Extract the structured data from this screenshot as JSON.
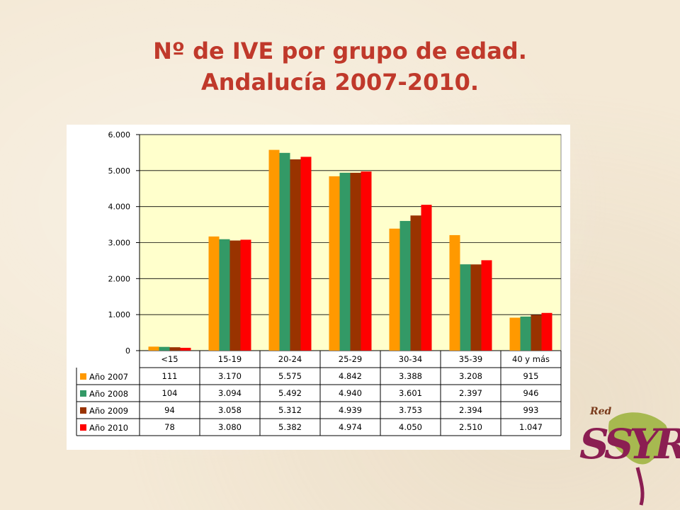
{
  "slide": {
    "title_line1": "Nº de IVE por grupo de edad.",
    "title_line2": "Andalucía 2007-2010."
  },
  "colors": {
    "title": "#c0392b",
    "plot_background": "#ffffcc",
    "series": [
      "#ff9900",
      "#339966",
      "#993300",
      "#ff0000"
    ]
  },
  "logo": {
    "word": "Red",
    "letters": "SSYR"
  },
  "chart_data": {
    "type": "bar",
    "title": "",
    "xlabel": "",
    "ylabel": "",
    "ylim": [
      0,
      6000
    ],
    "yticks": [
      0,
      1000,
      2000,
      3000,
      4000,
      5000,
      6000
    ],
    "ytick_labels": [
      "0",
      "1.000",
      "2.000",
      "3.000",
      "4.000",
      "5.000",
      "6.000"
    ],
    "grid": true,
    "legend": "data table below chart",
    "categories": [
      "<15",
      "15-19",
      "20-24",
      "25-29",
      "30-34",
      "35-39",
      "40 y más"
    ],
    "series": [
      {
        "name": "Año 2007",
        "values": [
          111,
          3170,
          5575,
          4842,
          3388,
          3208,
          915
        ],
        "labels": [
          "111",
          "3.170",
          "5.575",
          "4.842",
          "3.388",
          "3.208",
          "915"
        ]
      },
      {
        "name": "Año 2008",
        "values": [
          104,
          3094,
          5492,
          4940,
          3601,
          2397,
          946
        ],
        "labels": [
          "104",
          "3.094",
          "5.492",
          "4.940",
          "3.601",
          "2.397",
          "946"
        ]
      },
      {
        "name": "Año 2009",
        "values": [
          94,
          3058,
          5312,
          4939,
          3753,
          2394,
          993
        ],
        "labels": [
          "94",
          "3.058",
          "5.312",
          "4.939",
          "3.753",
          "2.394",
          "993"
        ]
      },
      {
        "name": "Año 2010",
        "values": [
          78,
          3080,
          5382,
          4974,
          4050,
          2510,
          1047
        ],
        "labels": [
          "78",
          "3.080",
          "5.382",
          "4.974",
          "4.050",
          "2.510",
          "1.047"
        ]
      }
    ]
  }
}
